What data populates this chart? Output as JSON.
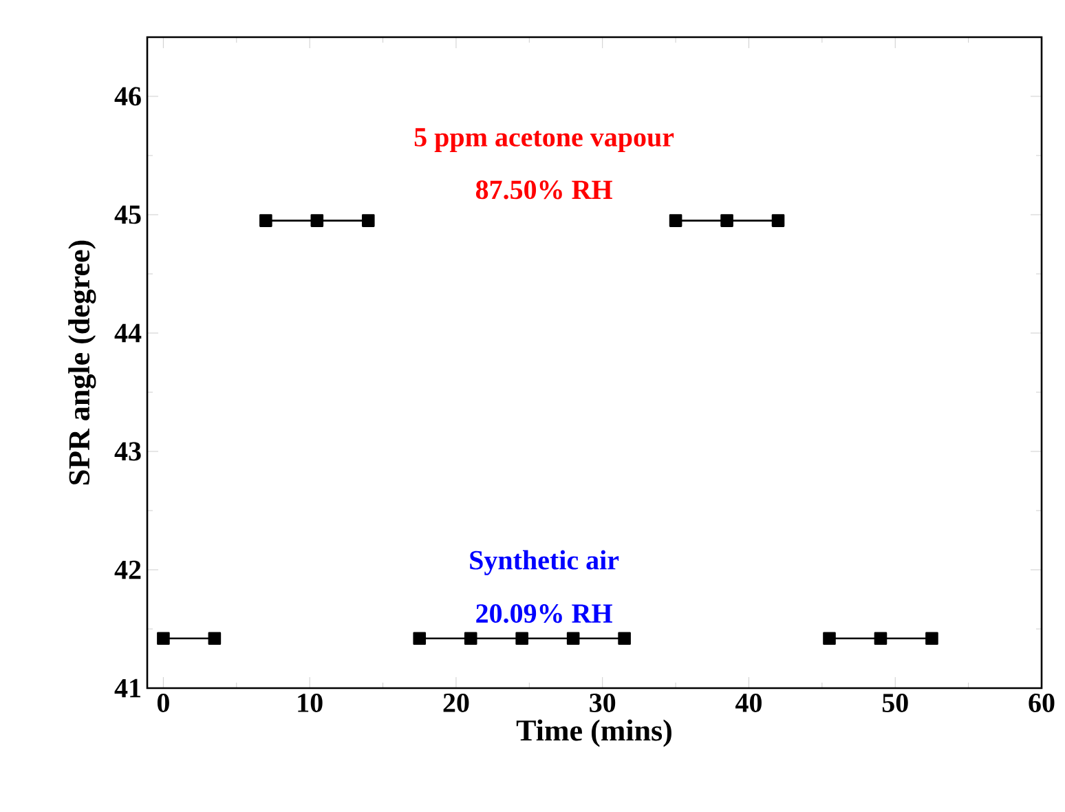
{
  "chart_data": {
    "type": "line",
    "xlabel": "Time (mins)",
    "ylabel": "SPR angle (degree)",
    "annotations": [
      "5 ppm acetone vapour",
      "87.50% RH",
      "Synthetic air",
      "20.09% RH"
    ],
    "series": [
      {
        "color": "#000000",
        "x": [
          0,
          3.5
        ],
        "values": [
          41.42,
          41.42
        ]
      },
      {
        "color": "#000000",
        "x": [
          7,
          10.5,
          14
        ],
        "values": [
          44.95,
          44.95,
          44.95
        ]
      },
      {
        "color": "#000000",
        "x": [
          17.5,
          21,
          24.5,
          28,
          31.5
        ],
        "values": [
          41.42,
          41.42,
          41.42,
          41.42,
          41.42
        ]
      },
      {
        "color": "#000000",
        "x": [
          35,
          38.5,
          42
        ],
        "values": [
          44.95,
          44.95,
          44.95
        ]
      },
      {
        "color": "#000000",
        "x": [
          45.5,
          49,
          52.5
        ],
        "values": [
          41.42,
          41.42,
          41.42
        ]
      }
    ],
    "xlim": [
      -1.1,
      60
    ],
    "xticks": [
      0,
      10,
      20,
      30,
      40,
      50,
      60
    ],
    "ylim": [
      41,
      46.5
    ],
    "yticks": [
      41,
      42,
      43,
      44,
      45,
      46
    ],
    "marker": "square",
    "line_style": "solid",
    "grid": false
  }
}
